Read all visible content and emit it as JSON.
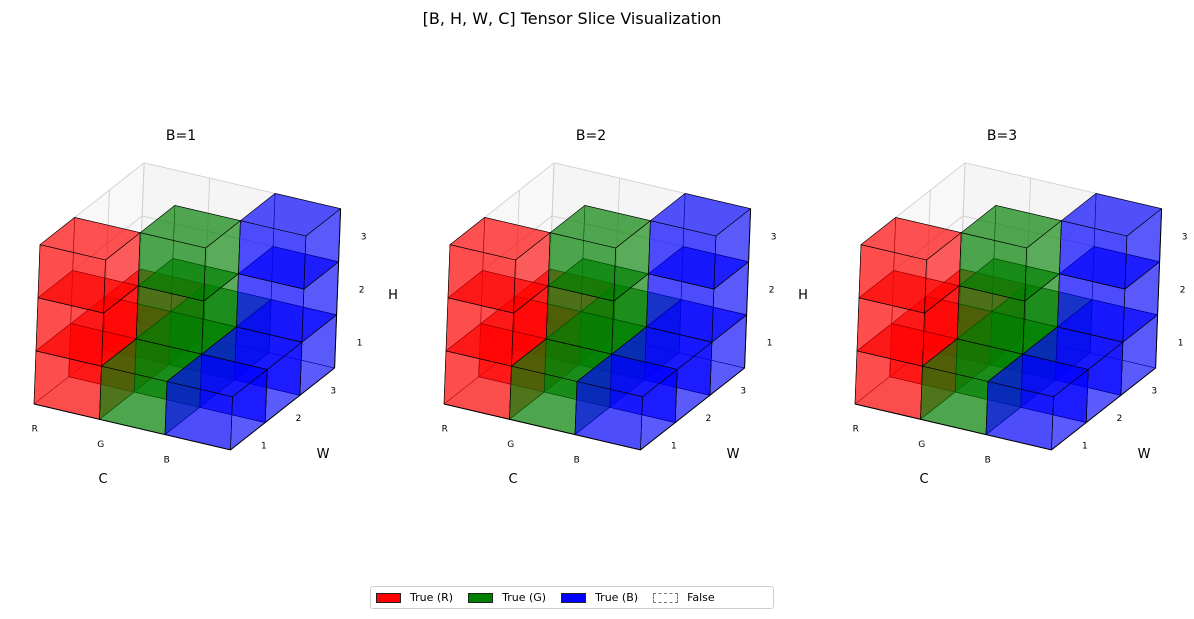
{
  "chart_data": {
    "type": "voxel-3d",
    "title": "[B, H, W, C] Tensor Slice Visualization",
    "axes": {
      "xlabel": "C",
      "ylabel": "W",
      "zlabel": "H",
      "x_ticks": [
        "R",
        "G",
        "B"
      ],
      "y_ticks": [
        "1",
        "2",
        "3"
      ],
      "z_ticks": [
        "1",
        "2",
        "3"
      ]
    },
    "colors": {
      "R": "#ff0000",
      "G": "#008000",
      "B": "#0000ff"
    },
    "legend": [
      {
        "label": "True (R)",
        "color": "#ff0000"
      },
      {
        "label": "True (G)",
        "color": "#008000"
      },
      {
        "label": "True (B)",
        "color": "#0000ff"
      },
      {
        "label": "False",
        "color": "none"
      }
    ],
    "panels": [
      {
        "title": "B=1",
        "cells_note": "values[c][w][h] = 1 if True",
        "values": {
          "R": [
            [
              1,
              1,
              1
            ],
            [
              1,
              0,
              0
            ],
            [
              1,
              0,
              0
            ]
          ],
          "G": [
            [
              1,
              0,
              0
            ],
            [
              1,
              1,
              1
            ],
            [
              1,
              0,
              0
            ]
          ],
          "B": [
            [
              1,
              0,
              0
            ],
            [
              1,
              0,
              0
            ],
            [
              1,
              1,
              1
            ]
          ]
        }
      },
      {
        "title": "B=2",
        "values": {
          "R": [
            [
              1,
              1,
              1
            ],
            [
              1,
              0,
              0
            ],
            [
              1,
              0,
              0
            ]
          ],
          "G": [
            [
              1,
              0,
              0
            ],
            [
              1,
              1,
              1
            ],
            [
              1,
              0,
              0
            ]
          ],
          "B": [
            [
              1,
              0,
              0
            ],
            [
              1,
              0,
              0
            ],
            [
              1,
              1,
              1
            ]
          ]
        }
      },
      {
        "title": "B=3",
        "values": {
          "R": [
            [
              1,
              1,
              1
            ],
            [
              1,
              0,
              0
            ],
            [
              1,
              0,
              0
            ]
          ],
          "G": [
            [
              1,
              0,
              0
            ],
            [
              1,
              1,
              1
            ],
            [
              1,
              0,
              0
            ]
          ],
          "B": [
            [
              1,
              0,
              0
            ],
            [
              1,
              0,
              0
            ],
            [
              1,
              1,
              1
            ]
          ]
        }
      }
    ]
  }
}
